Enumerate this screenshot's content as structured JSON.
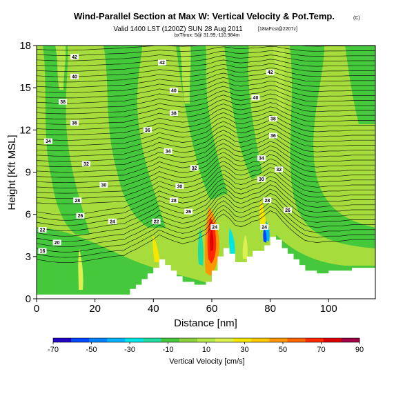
{
  "chart_data": {
    "type": "heatmap",
    "title": "Wind-Parallel Section at Max W: Vertical Velocity & Pot.Temp.",
    "title_mark": "(C)",
    "subtitle": "Valid 1400 LST (1200Z) SUN 28 Aug 2011",
    "subtitle_tag": "[18taFcst@2207z]",
    "subsubtitle": "bxThrux: 5@ 31.99,-110.984m",
    "xlabel": "Distance [nm]",
    "ylabel": "Height [Kft MSL]",
    "xlim": [
      0,
      116
    ],
    "ylim": [
      0,
      18
    ],
    "xticks": [
      0,
      20,
      40,
      60,
      80,
      100
    ],
    "yticks": [
      0,
      3,
      6,
      9,
      12,
      15,
      18
    ],
    "colorbar": {
      "label": "Vertical Velocity [cm/s]",
      "ticks": [
        -70,
        -50,
        -30,
        -10,
        10,
        30,
        50,
        70,
        90
      ],
      "range": [
        -70,
        90
      ],
      "colors": [
        "#1e00c8",
        "#0046ff",
        "#0082ff",
        "#00b4ff",
        "#00e6e6",
        "#20dca0",
        "#46c83c",
        "#8cd23c",
        "#b4e646",
        "#dcf050",
        "#f5e600",
        "#ffc800",
        "#ff9600",
        "#ff6400",
        "#ff2800",
        "#dc0000",
        "#a00046"
      ]
    },
    "terrain": [
      [
        0,
        0.3
      ],
      [
        30,
        0.3
      ],
      [
        32,
        0.7
      ],
      [
        34,
        1.0
      ],
      [
        36,
        1.4
      ],
      [
        38,
        1.8
      ],
      [
        40,
        2.2
      ],
      [
        42,
        2.8
      ],
      [
        44,
        2.4
      ],
      [
        46,
        2.0
      ],
      [
        48,
        1.6
      ],
      [
        50,
        1.2
      ],
      [
        54,
        1.0
      ],
      [
        58,
        1.2
      ],
      [
        60,
        2.0
      ],
      [
        62,
        3.0
      ],
      [
        64,
        3.6
      ],
      [
        66,
        3.2
      ],
      [
        68,
        2.6
      ],
      [
        70,
        2.6
      ],
      [
        72,
        3.0
      ],
      [
        74,
        3.4
      ],
      [
        76,
        3.4
      ],
      [
        78,
        3.8
      ],
      [
        80,
        4.4
      ],
      [
        82,
        4.2
      ],
      [
        84,
        3.6
      ],
      [
        86,
        3.2
      ],
      [
        88,
        2.8
      ],
      [
        90,
        2.4
      ],
      [
        92,
        2.0
      ],
      [
        96,
        1.8
      ],
      [
        100,
        2.0
      ],
      [
        104,
        2.0
      ],
      [
        108,
        2.2
      ],
      [
        116,
        2.2
      ]
    ],
    "contour_labels": [
      {
        "text": "42",
        "x": 13,
        "y": 17.2
      },
      {
        "text": "42",
        "x": 43,
        "y": 16.8
      },
      {
        "text": "42",
        "x": 80,
        "y": 16.1
      },
      {
        "text": "40",
        "x": 13,
        "y": 15.8
      },
      {
        "text": "40",
        "x": 47,
        "y": 14.8
      },
      {
        "text": "40",
        "x": 75,
        "y": 14.3
      },
      {
        "text": "38",
        "x": 9,
        "y": 14.0
      },
      {
        "text": "38",
        "x": 47,
        "y": 13.2
      },
      {
        "text": "38",
        "x": 81,
        "y": 12.8
      },
      {
        "text": "36",
        "x": 13,
        "y": 12.5
      },
      {
        "text": "36",
        "x": 38,
        "y": 12.0
      },
      {
        "text": "36",
        "x": 81,
        "y": 11.6
      },
      {
        "text": "34",
        "x": 4,
        "y": 11.2
      },
      {
        "text": "34",
        "x": 45,
        "y": 10.5
      },
      {
        "text": "34",
        "x": 77,
        "y": 10.0
      },
      {
        "text": "32",
        "x": 17,
        "y": 9.6
      },
      {
        "text": "32",
        "x": 54,
        "y": 9.3
      },
      {
        "text": "32",
        "x": 83,
        "y": 9.2
      },
      {
        "text": "30",
        "x": 23,
        "y": 8.1
      },
      {
        "text": "30",
        "x": 49,
        "y": 8.0
      },
      {
        "text": "30",
        "x": 77,
        "y": 8.5
      },
      {
        "text": "28",
        "x": 14,
        "y": 7.0
      },
      {
        "text": "28",
        "x": 47,
        "y": 7.0
      },
      {
        "text": "28",
        "x": 79,
        "y": 7.0
      },
      {
        "text": "26",
        "x": 15,
        "y": 5.9
      },
      {
        "text": "26",
        "x": 52,
        "y": 6.2
      },
      {
        "text": "26",
        "x": 86,
        "y": 6.3
      },
      {
        "text": "24",
        "x": 26,
        "y": 5.5
      },
      {
        "text": "24",
        "x": 61,
        "y": 5.1
      },
      {
        "text": "24",
        "x": 78,
        "y": 5.1
      },
      {
        "text": "22",
        "x": 41,
        "y": 5.5
      },
      {
        "text": "22",
        "x": 2,
        "y": 4.9
      },
      {
        "text": "20",
        "x": 7,
        "y": 4.0
      },
      {
        "text": "16",
        "x": 2,
        "y": 3.4
      }
    ]
  }
}
